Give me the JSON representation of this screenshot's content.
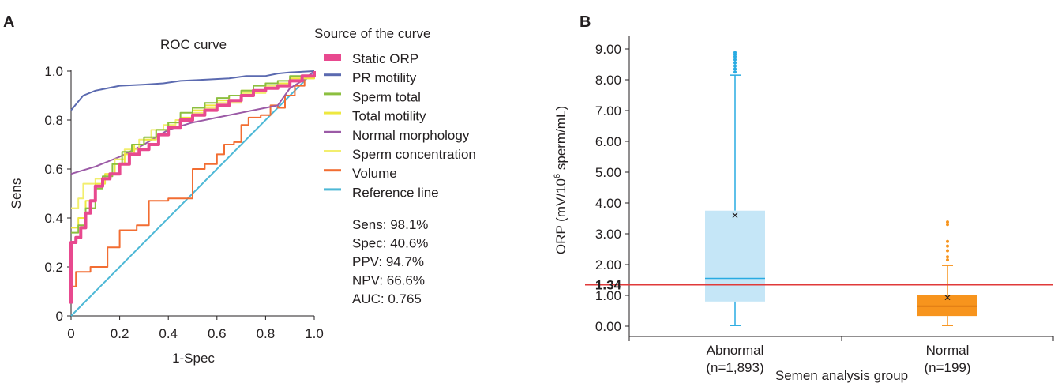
{
  "panel_a_label": "A",
  "panel_b_label": "B",
  "chart_data": [
    {
      "type": "line",
      "title": "ROC curve",
      "xlabel": "1-Spec",
      "ylabel": "Sens",
      "xlim": [
        0,
        1
      ],
      "ylim": [
        0,
        1
      ],
      "x_ticks": [
        "0",
        "0.2",
        "0.4",
        "0.6",
        "0.8",
        "1.0"
      ],
      "y_ticks": [
        "0",
        "0.2",
        "0.4",
        "0.6",
        "0.8",
        "1.0"
      ],
      "legend_title": "Source of the curve",
      "legend_position": "right",
      "grid": false,
      "series": [
        {
          "name": "Static ORP",
          "color": "#e8498f",
          "width": 4,
          "points": [
            [
              0,
              0.05
            ],
            [
              0,
              0.3
            ],
            [
              0.02,
              0.32
            ],
            [
              0.04,
              0.36
            ],
            [
              0.06,
              0.42
            ],
            [
              0.08,
              0.47
            ],
            [
              0.1,
              0.53
            ],
            [
              0.13,
              0.56
            ],
            [
              0.16,
              0.58
            ],
            [
              0.2,
              0.62
            ],
            [
              0.24,
              0.66
            ],
            [
              0.28,
              0.68
            ],
            [
              0.32,
              0.7
            ],
            [
              0.36,
              0.74
            ],
            [
              0.4,
              0.77
            ],
            [
              0.45,
              0.8
            ],
            [
              0.5,
              0.82
            ],
            [
              0.55,
              0.84
            ],
            [
              0.6,
              0.86
            ],
            [
              0.65,
              0.88
            ],
            [
              0.7,
              0.9
            ],
            [
              0.75,
              0.92
            ],
            [
              0.8,
              0.93
            ],
            [
              0.85,
              0.94
            ],
            [
              0.9,
              0.96
            ],
            [
              0.95,
              0.98
            ],
            [
              1,
              1
            ]
          ]
        },
        {
          "name": "PR motility",
          "color": "#5b6ab0",
          "width": 2,
          "points": [
            [
              0,
              0.84
            ],
            [
              0.05,
              0.9
            ],
            [
              0.1,
              0.92
            ],
            [
              0.2,
              0.94
            ],
            [
              0.3,
              0.945
            ],
            [
              0.38,
              0.95
            ],
            [
              0.45,
              0.96
            ],
            [
              0.55,
              0.965
            ],
            [
              0.65,
              0.97
            ],
            [
              0.72,
              0.98
            ],
            [
              0.8,
              0.98
            ],
            [
              0.85,
              0.99
            ],
            [
              0.9,
              0.995
            ],
            [
              1,
              1
            ]
          ]
        },
        {
          "name": "Sperm total",
          "color": "#8cbf3f",
          "width": 2,
          "points": [
            [
              0,
              0.34
            ],
            [
              0.03,
              0.37
            ],
            [
              0.06,
              0.44
            ],
            [
              0.1,
              0.52
            ],
            [
              0.13,
              0.57
            ],
            [
              0.17,
              0.62
            ],
            [
              0.21,
              0.67
            ],
            [
              0.25,
              0.7
            ],
            [
              0.3,
              0.73
            ],
            [
              0.35,
              0.76
            ],
            [
              0.4,
              0.79
            ],
            [
              0.45,
              0.83
            ],
            [
              0.5,
              0.85
            ],
            [
              0.55,
              0.87
            ],
            [
              0.6,
              0.89
            ],
            [
              0.65,
              0.9
            ],
            [
              0.7,
              0.92
            ],
            [
              0.75,
              0.94
            ],
            [
              0.8,
              0.95
            ],
            [
              0.85,
              0.96
            ],
            [
              0.9,
              0.98
            ],
            [
              1,
              1
            ]
          ]
        },
        {
          "name": "Total motility",
          "color": "#eee840",
          "width": 2,
          "points": [
            [
              0,
              0.36
            ],
            [
              0.03,
              0.4
            ],
            [
              0.06,
              0.47
            ],
            [
              0.1,
              0.54
            ],
            [
              0.14,
              0.58
            ],
            [
              0.18,
              0.62
            ],
            [
              0.22,
              0.66
            ],
            [
              0.26,
              0.7
            ],
            [
              0.3,
              0.72
            ],
            [
              0.35,
              0.76
            ],
            [
              0.4,
              0.79
            ],
            [
              0.45,
              0.81
            ],
            [
              0.5,
              0.84
            ],
            [
              0.55,
              0.86
            ],
            [
              0.6,
              0.88
            ],
            [
              0.65,
              0.9
            ],
            [
              0.7,
              0.92
            ],
            [
              0.8,
              0.95
            ],
            [
              0.9,
              0.97
            ],
            [
              1,
              1
            ]
          ]
        },
        {
          "name": "Normal morphology",
          "color": "#9b5aa6",
          "width": 2,
          "points": [
            [
              0,
              0.58
            ],
            [
              0.1,
              0.61
            ],
            [
              0.2,
              0.65
            ],
            [
              0.3,
              0.7
            ],
            [
              0.4,
              0.76
            ],
            [
              0.5,
              0.79
            ],
            [
              0.6,
              0.81
            ],
            [
              0.7,
              0.83
            ],
            [
              0.8,
              0.85
            ],
            [
              0.85,
              0.86
            ],
            [
              0.9,
              0.93
            ],
            [
              0.95,
              0.96
            ],
            [
              1,
              1
            ]
          ]
        },
        {
          "name": "Sperm concentration",
          "color": "#f2ee6e",
          "width": 2,
          "points": [
            [
              0,
              0.44
            ],
            [
              0.03,
              0.48
            ],
            [
              0.05,
              0.54
            ],
            [
              0.1,
              0.56
            ],
            [
              0.14,
              0.58
            ],
            [
              0.18,
              0.64
            ],
            [
              0.22,
              0.68
            ],
            [
              0.28,
              0.72
            ],
            [
              0.33,
              0.76
            ],
            [
              0.38,
              0.78
            ],
            [
              0.43,
              0.8
            ],
            [
              0.5,
              0.83
            ],
            [
              0.55,
              0.85
            ],
            [
              0.6,
              0.87
            ],
            [
              0.7,
              0.91
            ],
            [
              0.8,
              0.94
            ],
            [
              0.9,
              0.97
            ],
            [
              1,
              1
            ]
          ]
        },
        {
          "name": "Volume",
          "color": "#f26d32",
          "width": 2,
          "points": [
            [
              0,
              0.12
            ],
            [
              0.02,
              0.18
            ],
            [
              0.08,
              0.2
            ],
            [
              0.15,
              0.28
            ],
            [
              0.2,
              0.35
            ],
            [
              0.27,
              0.37
            ],
            [
              0.32,
              0.47
            ],
            [
              0.4,
              0.48
            ],
            [
              0.5,
              0.6
            ],
            [
              0.55,
              0.62
            ],
            [
              0.6,
              0.66
            ],
            [
              0.63,
              0.7
            ],
            [
              0.67,
              0.71
            ],
            [
              0.7,
              0.78
            ],
            [
              0.73,
              0.81
            ],
            [
              0.78,
              0.82
            ],
            [
              0.82,
              0.86
            ],
            [
              0.85,
              0.85
            ],
            [
              0.88,
              0.9
            ],
            [
              0.92,
              0.94
            ],
            [
              0.96,
              0.97
            ],
            [
              1,
              1
            ]
          ]
        },
        {
          "name": "Reference line",
          "color": "#4db8d6",
          "width": 2,
          "points": [
            [
              0,
              0
            ],
            [
              1,
              1
            ]
          ]
        }
      ],
      "stats": [
        "Sens: 98.1%",
        "Spec: 40.6%",
        "PPV: 94.7%",
        "NPV: 66.6%",
        "AUC: 0.765"
      ]
    },
    {
      "type": "box",
      "xlabel": "Semen analysis group",
      "ylabel_main": "ORP (mV/10",
      "ylabel_sup": "6",
      "ylabel_tail": " sperm/mL)",
      "ylim": [
        -0.25,
        9.5
      ],
      "y_ticks": [
        "0.00",
        "1.00",
        "2.00",
        "3.00",
        "4.00",
        "5.00",
        "6.00",
        "7.00",
        "8.00",
        "9.00"
      ],
      "cutoff": 1.34,
      "cutoff_label": "1.34",
      "cutoff_color": "#e03a3a",
      "grid": false,
      "groups": [
        {
          "label": "Abnormal",
          "n_label": "(n=1,893)",
          "color": "#c5e6f7",
          "edge": "#29abe2",
          "min": 0.02,
          "q1": 0.8,
          "median": 1.55,
          "q3": 3.75,
          "max": 8.15,
          "mean": 3.6,
          "outliers": [
            8.25,
            8.35,
            8.45,
            8.55,
            8.65,
            8.75,
            8.82,
            8.88
          ]
        },
        {
          "label": "Normal",
          "n_label": "(n=199)",
          "color": "#f7941d",
          "edge": "#f7941d",
          "min": 0.02,
          "q1": 0.33,
          "median": 0.65,
          "q3": 1.02,
          "max": 1.97,
          "mean": 0.93,
          "outliers": [
            2.15,
            2.25,
            2.45,
            2.6,
            2.75,
            3.3,
            3.38
          ]
        }
      ]
    }
  ]
}
